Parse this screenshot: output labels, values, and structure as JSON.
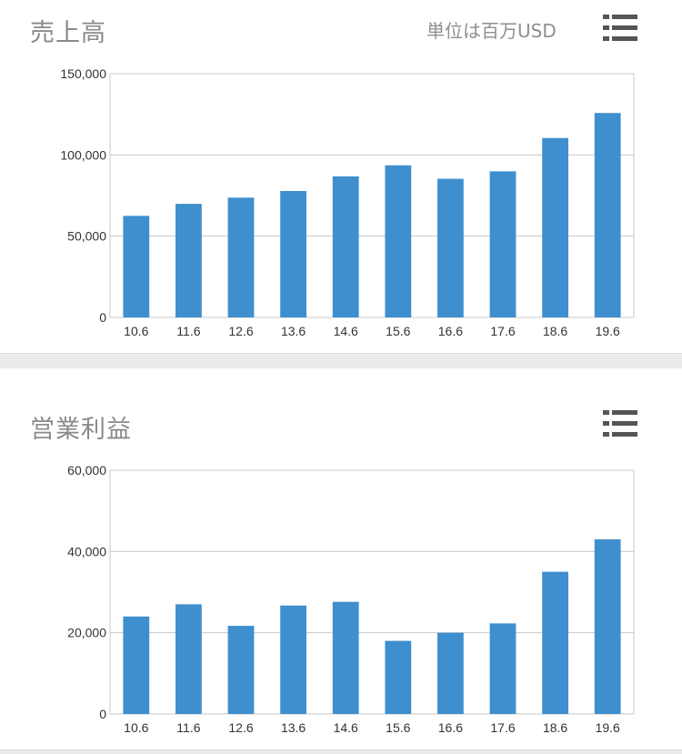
{
  "sections": [
    {
      "title": "売上高",
      "unit": "単位は百万USD",
      "menu_icon": "list-icon",
      "chart_data": {
        "type": "bar",
        "title": "",
        "xlabel": "",
        "ylabel": "",
        "categories": [
          "10.6",
          "11.6",
          "12.6",
          "13.6",
          "14.6",
          "15.6",
          "16.6",
          "17.6",
          "18.6",
          "19.6"
        ],
        "series": [
          {
            "values": [
              62500,
              69900,
              73700,
              77800,
              86800,
              93600,
              85300,
              89900,
              110400,
              125800
            ]
          }
        ],
        "ylim": [
          0,
          150000
        ],
        "yticks": [
          0,
          50000,
          100000,
          150000
        ],
        "ytick_labels": [
          "0",
          "50,000",
          "100,000",
          "150,000"
        ],
        "grid": true,
        "bar_color": "#3f8fce"
      }
    },
    {
      "title": "営業利益",
      "unit": "",
      "menu_icon": "list-icon",
      "chart_data": {
        "type": "bar",
        "title": "",
        "xlabel": "",
        "ylabel": "",
        "categories": [
          "10.6",
          "11.6",
          "12.6",
          "13.6",
          "14.6",
          "15.6",
          "16.6",
          "17.6",
          "18.6",
          "19.6"
        ],
        "series": [
          {
            "values": [
              24000,
              27000,
              21700,
              26700,
              27600,
              18000,
              20000,
              22300,
              35000,
              43000
            ]
          }
        ],
        "ylim": [
          0,
          60000
        ],
        "yticks": [
          0,
          20000,
          40000,
          60000
        ],
        "ytick_labels": [
          "0",
          "20,000",
          "40,000",
          "60,000"
        ],
        "grid": true,
        "bar_color": "#3f8fce"
      }
    }
  ]
}
